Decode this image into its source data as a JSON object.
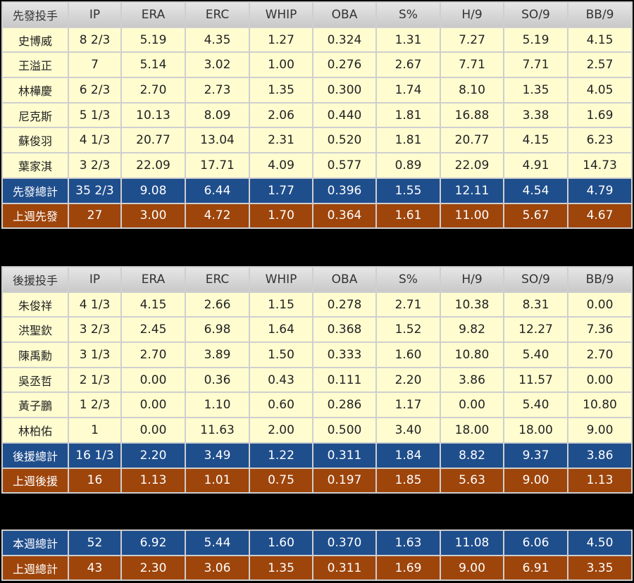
{
  "tables": [
    {
      "header": [
        "先發投手",
        "IP",
        "ERA",
        "ERC",
        "WHIP",
        "OBA",
        "S%",
        "H/9",
        "SO/9",
        "BB/9"
      ],
      "rows": [
        [
          "史博威",
          "8 2/3",
          "5.19",
          "4.35",
          "1.27",
          "0.324",
          "1.31",
          "7.27",
          "5.19",
          "4.15"
        ],
        [
          "王溢正",
          "7",
          "5.14",
          "3.02",
          "1.00",
          "0.276",
          "2.67",
          "7.71",
          "7.71",
          "2.57"
        ],
        [
          "林樺慶",
          "6 2/3",
          "2.70",
          "2.73",
          "1.35",
          "0.300",
          "1.74",
          "8.10",
          "1.35",
          "4.05"
        ],
        [
          "尼克斯",
          "5 1/3",
          "10.13",
          "8.09",
          "2.06",
          "0.440",
          "1.81",
          "16.88",
          "3.38",
          "1.69"
        ],
        [
          "蘇俊羽",
          "4 1/3",
          "20.77",
          "13.04",
          "2.31",
          "0.520",
          "1.81",
          "20.77",
          "4.15",
          "6.23"
        ],
        [
          "葉家淇",
          "3 2/3",
          "22.09",
          "17.71",
          "4.09",
          "0.577",
          "0.89",
          "22.09",
          "4.91",
          "14.73"
        ]
      ],
      "total": [
        "先發總計",
        "35 2/3",
        "9.08",
        "6.44",
        "1.77",
        "0.396",
        "1.55",
        "12.11",
        "4.54",
        "4.79"
      ],
      "last_week": [
        "上週先發",
        "27",
        "3.00",
        "4.72",
        "1.70",
        "0.364",
        "1.61",
        "11.00",
        "5.67",
        "4.67"
      ]
    },
    {
      "header": [
        "後援投手",
        "IP",
        "ERA",
        "ERC",
        "WHIP",
        "OBA",
        "S%",
        "H/9",
        "SO/9",
        "BB/9"
      ],
      "rows": [
        [
          "朱俊祥",
          "4 1/3",
          "4.15",
          "2.66",
          "1.15",
          "0.278",
          "2.71",
          "10.38",
          "8.31",
          "0.00"
        ],
        [
          "洪聖欽",
          "3 2/3",
          "2.45",
          "6.98",
          "1.64",
          "0.368",
          "1.52",
          "9.82",
          "12.27",
          "7.36"
        ],
        [
          "陳禹勳",
          "3 1/3",
          "2.70",
          "3.89",
          "1.50",
          "0.333",
          "1.60",
          "10.80",
          "5.40",
          "2.70"
        ],
        [
          "吳丞哲",
          "2 1/3",
          "0.00",
          "0.36",
          "0.43",
          "0.111",
          "2.20",
          "3.86",
          "11.57",
          "0.00"
        ],
        [
          "黃子鵬",
          "1 2/3",
          "0.00",
          "1.10",
          "0.60",
          "0.286",
          "1.17",
          "0.00",
          "5.40",
          "10.80"
        ],
        [
          "林柏佑",
          "1",
          "0.00",
          "11.63",
          "2.00",
          "0.500",
          "3.40",
          "18.00",
          "18.00",
          "9.00"
        ]
      ],
      "total": [
        "後援總計",
        "16 1/3",
        "2.20",
        "3.49",
        "1.22",
        "0.311",
        "1.84",
        "8.82",
        "9.37",
        "3.86"
      ],
      "last_week": [
        "上週後援",
        "16",
        "1.13",
        "1.01",
        "0.75",
        "0.197",
        "1.85",
        "5.63",
        "9.00",
        "1.13"
      ]
    },
    {
      "total": [
        "本週總計",
        "52",
        "6.92",
        "5.44",
        "1.60",
        "0.370",
        "1.63",
        "11.08",
        "6.06",
        "4.50"
      ],
      "last_week": [
        "上週總計",
        "43",
        "2.30",
        "3.06",
        "1.35",
        "0.311",
        "1.69",
        "9.00",
        "6.91",
        "3.35"
      ]
    }
  ]
}
